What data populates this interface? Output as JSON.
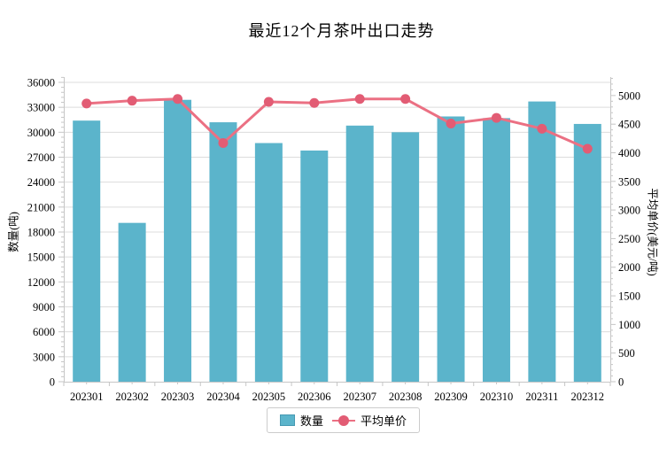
{
  "chart_data": {
    "type": "bar",
    "title": "最近12个月茶叶出口走势",
    "categories": [
      "202301",
      "202302",
      "202303",
      "202304",
      "202305",
      "202306",
      "202307",
      "202308",
      "202309",
      "202310",
      "202311",
      "202312"
    ],
    "series": [
      {
        "name": "数量",
        "type": "bar",
        "axis": "left",
        "color": "#5bb4cb",
        "values": [
          31400,
          19100,
          33900,
          31200,
          28700,
          27800,
          30800,
          30000,
          31900,
          31700,
          33700,
          31000
        ]
      },
      {
        "name": "平均单价",
        "type": "line",
        "axis": "right",
        "color": "#eb7083",
        "dot_color": "#e25c74",
        "values": [
          4860,
          4910,
          4940,
          4170,
          4890,
          4870,
          4940,
          4940,
          4510,
          4610,
          4420,
          4070
        ]
      }
    ],
    "axes": {
      "left": {
        "label": "数量(吨)",
        "min": 0,
        "max": 36000,
        "tick_interval": 3000,
        "minor_interval": 600
      },
      "right": {
        "label": "平均单价(美元/吨)",
        "min": 0,
        "max_tick": 5000,
        "tick_interval": 500,
        "minor_interval": 100,
        "axis_top_value": 5230
      }
    },
    "legend": {
      "position": "bottom",
      "items": [
        "数量",
        "平均单价"
      ]
    },
    "grid": true,
    "colors": {
      "gridline": "#dcdcdc",
      "axis_line": "#c6c6c6",
      "tick": "#c6c6c6",
      "text": "#000000",
      "background": "#ffffff"
    }
  }
}
